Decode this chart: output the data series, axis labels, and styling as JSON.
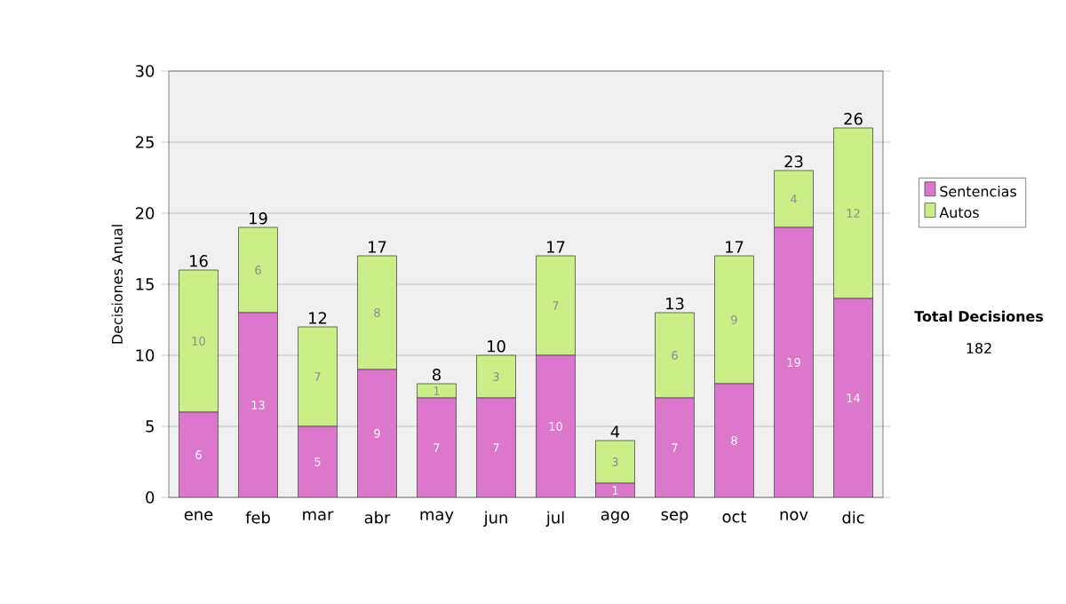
{
  "chart_data": {
    "type": "bar",
    "stacked": true,
    "ylabel": "Decisiones Anual",
    "categories": [
      "ene",
      "feb",
      "mar",
      "abr",
      "may",
      "jun",
      "jul",
      "ago",
      "sep",
      "oct",
      "nov",
      "dic"
    ],
    "series": [
      {
        "name": "Sentencias",
        "color": "#dd77cc",
        "values": [
          6,
          13,
          5,
          9,
          7,
          7,
          10,
          1,
          7,
          8,
          19,
          14
        ]
      },
      {
        "name": "Autos",
        "color": "#ccee88",
        "values": [
          10,
          6,
          7,
          8,
          1,
          3,
          7,
          3,
          6,
          9,
          4,
          12
        ]
      }
    ],
    "ylim": [
      0,
      30
    ],
    "yticks": [
      0,
      5,
      10,
      15,
      20,
      25,
      30
    ],
    "grid": "y",
    "legend": "right",
    "data_labels": true,
    "totals": [
      "16",
      "19",
      "12",
      "17",
      "8",
      "10",
      "17",
      "4",
      "13",
      "17",
      "23",
      "26"
    ],
    "annotations": [
      "Total Decisiones",
      "182"
    ]
  }
}
